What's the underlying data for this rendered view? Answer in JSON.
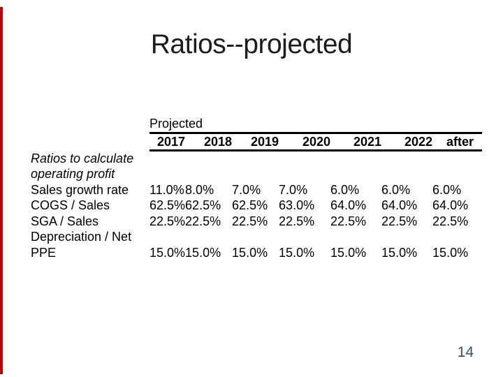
{
  "slide": {
    "title": "Ratios--projected",
    "page_number": "14"
  },
  "colors": {
    "accent_bar": "#c00000",
    "page_number": "#31506b",
    "table_rule": "#000000",
    "text": "#000000"
  },
  "table": {
    "group_header": "Projected",
    "columns": [
      "2017",
      "2018",
      "2019",
      "2020",
      "2021",
      "2022",
      "after"
    ],
    "section_label": {
      "line1": "Ratios to calculate",
      "line2": "operating profit"
    },
    "rows": [
      {
        "label": "Sales growth rate",
        "values": [
          "11.0%",
          "8.0%",
          "7.0%",
          "7.0%",
          "6.0%",
          "6.0%",
          "6.0%"
        ]
      },
      {
        "label": "COGS / Sales",
        "values": [
          "62.5%",
          "62.5%",
          "62.5%",
          "63.0%",
          "64.0%",
          "64.0%",
          "64.0%"
        ]
      },
      {
        "label": "SGA / Sales",
        "values": [
          "22.5%",
          "22.5%",
          "22.5%",
          "22.5%",
          "22.5%",
          "22.5%",
          "22.5%"
        ]
      },
      {
        "label_line1": "Depreciation / Net",
        "label_line2": "PPE",
        "values": [
          "15.0%",
          "15.0%",
          "15.0%",
          "15.0%",
          "15.0%",
          "15.0%",
          "15.0%"
        ]
      }
    ]
  }
}
